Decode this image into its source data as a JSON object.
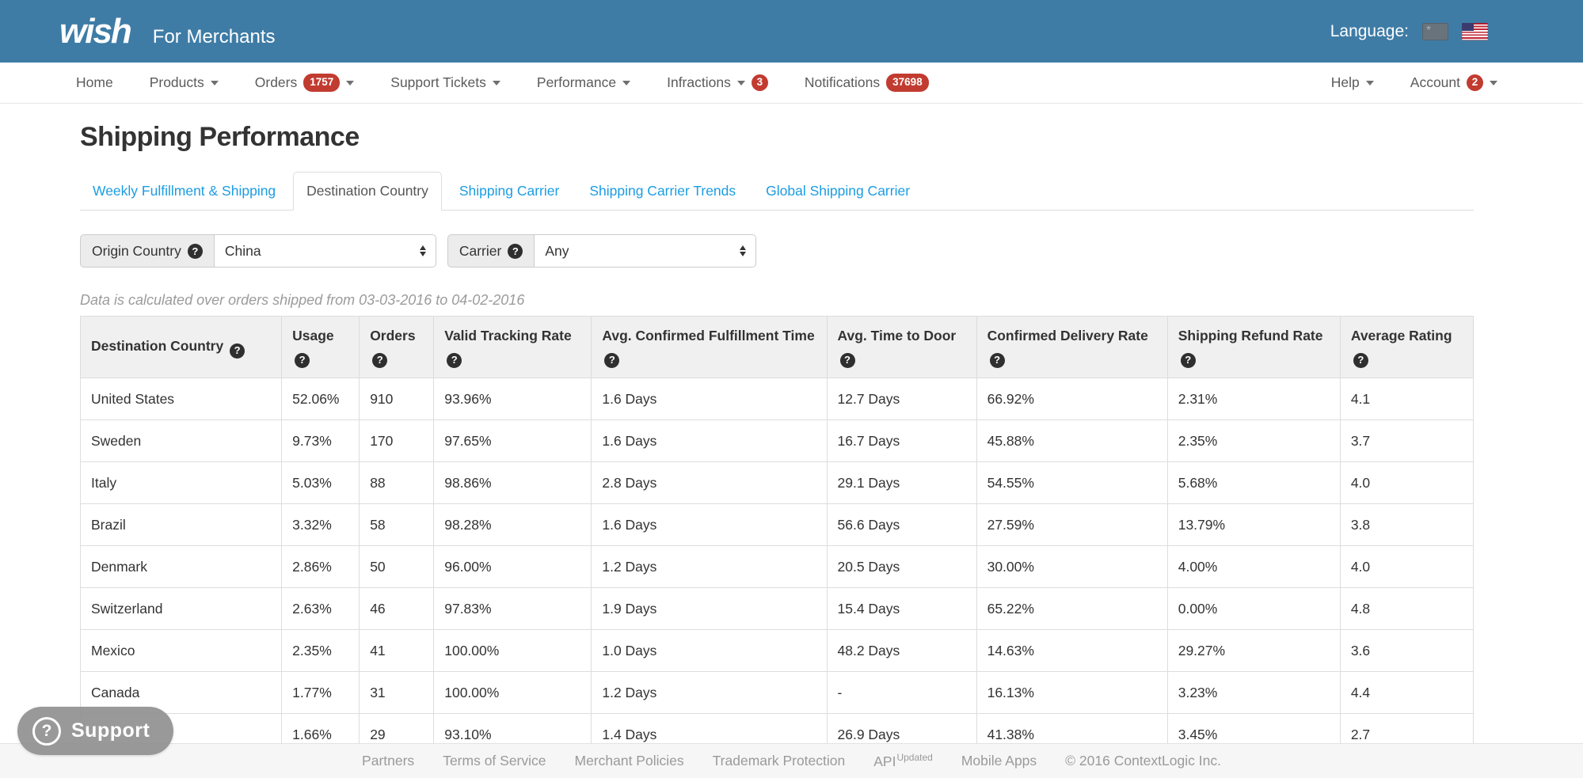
{
  "colors": {
    "header_bg": "#3e7ca6",
    "badge_red": "#c23b30",
    "link_blue": "#1b9de2"
  },
  "icons": {
    "help_glyph": "?",
    "support_question_glyph": "?"
  },
  "header": {
    "logo": "wish",
    "subtitle": "For Merchants",
    "language_label": "Language:",
    "flags": [
      "china-flag",
      "us-flag"
    ]
  },
  "nav": {
    "left_items": [
      {
        "label": "Home"
      },
      {
        "label": "Products",
        "caret": true
      },
      {
        "label": "Orders",
        "badge": "1757",
        "caret": true
      },
      {
        "label": "Support Tickets",
        "caret": true
      },
      {
        "label": "Performance",
        "caret": true
      },
      {
        "label": "Infractions",
        "caret": true,
        "badge": "3",
        "badge_after_caret": true,
        "badge_circle": true
      },
      {
        "label": "Notifications",
        "badge": "37698"
      }
    ],
    "right_items": [
      {
        "label": "Help",
        "caret": true
      },
      {
        "label": "Account",
        "badge": "2",
        "badge_circle": true,
        "caret": true
      }
    ]
  },
  "page": {
    "title": "Shipping Performance"
  },
  "tabs": [
    {
      "label": "Weekly Fulfillment & Shipping",
      "active": false
    },
    {
      "label": "Destination Country",
      "active": true
    },
    {
      "label": "Shipping Carrier",
      "active": false
    },
    {
      "label": "Shipping Carrier Trends",
      "active": false
    },
    {
      "label": "Global Shipping Carrier",
      "active": false
    }
  ],
  "filters": {
    "origin_country": {
      "label": "Origin Country",
      "value": "China"
    },
    "carrier": {
      "label": "Carrier",
      "value": "Any"
    }
  },
  "note": "Data is calculated over orders shipped from 03-03-2016 to 04-02-2016",
  "table": {
    "columns": [
      "Destination Country",
      "Usage",
      "Orders",
      "Valid Tracking Rate",
      "Avg. Confirmed Fulfillment Time",
      "Avg. Time to Door",
      "Confirmed Delivery Rate",
      "Shipping Refund Rate",
      "Average Rating"
    ],
    "rows": [
      [
        "United States",
        "52.06%",
        "910",
        "93.96%",
        "1.6 Days",
        "12.7 Days",
        "66.92%",
        "2.31%",
        "4.1"
      ],
      [
        "Sweden",
        "9.73%",
        "170",
        "97.65%",
        "1.6 Days",
        "16.7 Days",
        "45.88%",
        "2.35%",
        "3.7"
      ],
      [
        "Italy",
        "5.03%",
        "88",
        "98.86%",
        "2.8 Days",
        "29.1 Days",
        "54.55%",
        "5.68%",
        "4.0"
      ],
      [
        "Brazil",
        "3.32%",
        "58",
        "98.28%",
        "1.6 Days",
        "56.6 Days",
        "27.59%",
        "13.79%",
        "3.8"
      ],
      [
        "Denmark",
        "2.86%",
        "50",
        "96.00%",
        "1.2 Days",
        "20.5 Days",
        "30.00%",
        "4.00%",
        "4.0"
      ],
      [
        "Switzerland",
        "2.63%",
        "46",
        "97.83%",
        "1.9 Days",
        "15.4 Days",
        "65.22%",
        "0.00%",
        "4.8"
      ],
      [
        "Mexico",
        "2.35%",
        "41",
        "100.00%",
        "1.0 Days",
        "48.2 Days",
        "14.63%",
        "29.27%",
        "3.6"
      ],
      [
        "Canada",
        "1.77%",
        "31",
        "100.00%",
        "1.2 Days",
        "-",
        "16.13%",
        "3.23%",
        "4.4"
      ],
      [
        "",
        "1.66%",
        "29",
        "93.10%",
        "1.4 Days",
        "26.9 Days",
        "41.38%",
        "3.45%",
        "2.7"
      ]
    ]
  },
  "footer": {
    "items": [
      {
        "label": "Partners",
        "interactable": true
      },
      {
        "label": "Terms of Service",
        "interactable": true
      },
      {
        "label": "Merchant Policies",
        "interactable": true
      },
      {
        "label": "Trademark Protection",
        "interactable": true
      },
      {
        "label": "API",
        "superscript": "Updated",
        "interactable": true
      },
      {
        "label": "Mobile Apps",
        "interactable": true
      },
      {
        "label": "© 2016 ContextLogic Inc.",
        "interactable": false
      }
    ]
  },
  "support": {
    "label": "Support"
  }
}
